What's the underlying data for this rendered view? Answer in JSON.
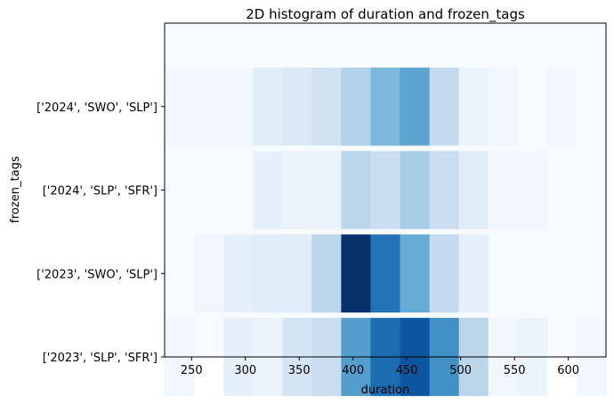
{
  "chart_data": {
    "type": "heatmap",
    "title": "2D histogram of duration and frozen_tags",
    "xlabel": "duration",
    "ylabel": "frozen_tags",
    "xlim": [
      225,
      635
    ],
    "x_ticks": [
      250,
      300,
      350,
      400,
      450,
      500,
      550,
      600
    ],
    "y_categories": [
      "['2023', 'SLP', 'SFR']",
      "['2023', 'SWO', 'SLP']",
      "['2024', 'SLP', 'SFR']",
      "['2024', 'SWO', 'SLP']"
    ],
    "x_bin_edges": [
      225,
      252.33,
      279.67,
      307,
      334.33,
      361.67,
      389,
      416.33,
      443.67,
      471,
      498.33,
      525.67,
      553,
      580.33,
      607.67,
      635
    ],
    "counts": [
      [
        1,
        0,
        3,
        2,
        6,
        8,
        20,
        27,
        30,
        22,
        10,
        1,
        2,
        0,
        1
      ],
      [
        0,
        1,
        3,
        4,
        4,
        10,
        35,
        26,
        18,
        9,
        3,
        0,
        0,
        0,
        0
      ],
      [
        0,
        0,
        0,
        3,
        2,
        2,
        10,
        8,
        12,
        8,
        4,
        1,
        1,
        0,
        0
      ],
      [
        1,
        1,
        1,
        4,
        5,
        7,
        11,
        16,
        19,
        9,
        2,
        1,
        0,
        1,
        0
      ]
    ],
    "colormap": "Blues",
    "grid": false,
    "legend": "none"
  }
}
